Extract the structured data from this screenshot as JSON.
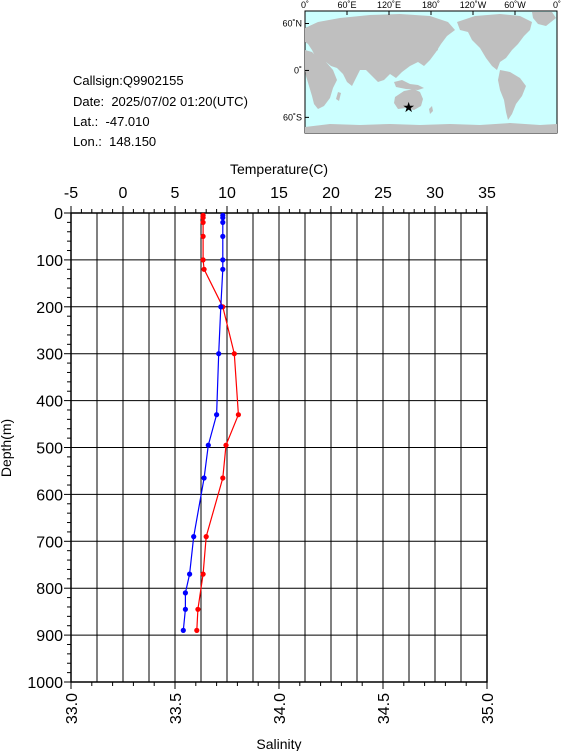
{
  "station": {
    "callsign_label": "Callsign:",
    "callsign": "Q9902155",
    "date_label": "Date:",
    "date": "2025/07/02 01:20(UTC)",
    "lat_label": "Lat.:",
    "lat": "-47.010",
    "lon_label": "Lon.:",
    "lon": "148.150"
  },
  "map": {
    "top_labels": [
      "0˚",
      "60˚E",
      "120˚E",
      "180˚",
      "120˚W",
      "60˚W",
      "0˚"
    ],
    "lat_labels": [
      "60˚N",
      "0˚",
      "60˚S"
    ],
    "marker_lon": 148.15,
    "marker_lat": -47.01,
    "ocean_color": "#ccffff",
    "land_color": "#bfbfbf",
    "marker_color": "#ff0000"
  },
  "chart_data": {
    "type": "line",
    "title": "",
    "top_axis": {
      "label": "Temperature(C)",
      "range": [
        -5,
        35
      ],
      "ticks": [
        "-5",
        "0",
        "5",
        "10",
        "15",
        "20",
        "25",
        "30",
        "35"
      ]
    },
    "bottom_axis": {
      "label": "Salinity",
      "range": [
        33.0,
        35.0
      ],
      "ticks": [
        "33.0",
        "33.5",
        "34.0",
        "34.5",
        "35.0"
      ]
    },
    "left_axis": {
      "label": "Depth(m)",
      "range": [
        0,
        1000
      ],
      "inverted": true,
      "ticks": [
        "0",
        "100",
        "200",
        "300",
        "400",
        "500",
        "600",
        "700",
        "800",
        "900",
        "1000"
      ]
    },
    "grid": true,
    "series": [
      {
        "color": "#ff0000",
        "axis": "temperature",
        "depth": [
          5,
          10,
          20,
          50,
          100,
          120,
          200,
          300,
          430,
          495,
          565,
          690,
          770,
          845,
          890
        ],
        "values": [
          7.7,
          7.7,
          7.7,
          7.7,
          7.7,
          7.8,
          9.6,
          10.7,
          11.1,
          9.9,
          9.6,
          8.0,
          7.7,
          7.2,
          7.1
        ]
      },
      {
        "color": "#0000ff",
        "axis": "salinity",
        "depth": [
          5,
          10,
          20,
          50,
          100,
          120,
          200,
          300,
          430,
          495,
          565,
          690,
          770,
          810,
          845,
          890
        ],
        "values": [
          33.73,
          33.73,
          33.73,
          33.73,
          33.73,
          33.73,
          33.72,
          33.71,
          33.7,
          33.66,
          33.64,
          33.59,
          33.57,
          33.55,
          33.55,
          33.54
        ]
      }
    ]
  }
}
